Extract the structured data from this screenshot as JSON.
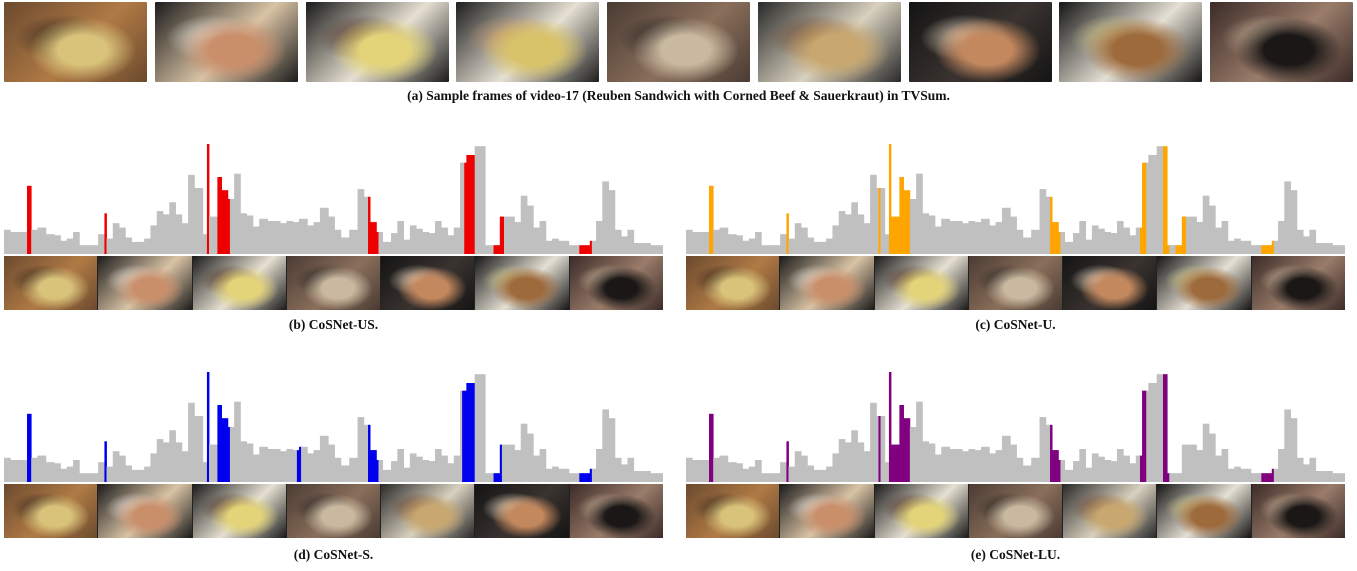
{
  "top_caption": "(a) Sample frames of video-17 (Reuben Sandwich with Corned Beef & Sauerkraut) in TVSum.",
  "top_frames": [
    {
      "name": "sandwich-halves",
      "tones": [
        "#6b4a2e",
        "#b07a45",
        "#d9c27a",
        "#3a2a1e"
      ]
    },
    {
      "name": "hand-on-bread",
      "tones": [
        "#1c1c1c",
        "#d9c3a5",
        "#c98f6b",
        "#e8e4dc"
      ]
    },
    {
      "name": "cheese-on-plate",
      "tones": [
        "#1b1b1b",
        "#e6e0d2",
        "#e3d47a",
        "#5a3a2a"
      ]
    },
    {
      "name": "slicing-sandwich",
      "tones": [
        "#1e1e1e",
        "#e7e1d4",
        "#d8c36a",
        "#c99a6a"
      ]
    },
    {
      "name": "woman-in-kitchen",
      "tones": [
        "#4a3b33",
        "#8a6f5b",
        "#c9b9a0",
        "#2a2624"
      ]
    },
    {
      "name": "stacked-sandwich",
      "tones": [
        "#2a2a2a",
        "#d9d1bf",
        "#c8a870",
        "#7a5034"
      ]
    },
    {
      "name": "pan-frying",
      "tones": [
        "#141414",
        "#3a3330",
        "#c4885e",
        "#e5d7c1"
      ]
    },
    {
      "name": "plated-reuben",
      "tones": [
        "#161616",
        "#e5e0d4",
        "#9d6a3c",
        "#d7cc8a"
      ]
    },
    {
      "name": "woman-eating",
      "tones": [
        "#3b2b28",
        "#9a7c6a",
        "#1a1716",
        "#c9b39a"
      ]
    }
  ],
  "panels": [
    {
      "id": "b",
      "caption": "(b) CoSNet-US.",
      "color": "#ee0000",
      "selected_ranges": [
        [
          11,
          12
        ],
        [
          48,
          48
        ],
        [
          97,
          97
        ],
        [
          102,
          107
        ],
        [
          174,
          178
        ],
        [
          220,
          224
        ],
        [
          234,
          238
        ],
        [
          275,
          280
        ]
      ],
      "thumbs": [
        "sandwich-halves",
        "hand-on-bread",
        "cheese-on-plate",
        "woman-in-kitchen",
        "pan-frying",
        "plated-reuben",
        "woman-eating"
      ]
    },
    {
      "id": "c",
      "caption": "(c) CoSNet-U.",
      "color": "#ffa500",
      "selected_ranges": [
        [
          11,
          12
        ],
        [
          48,
          48
        ],
        [
          92,
          92
        ],
        [
          97,
          106
        ],
        [
          174,
          178
        ],
        [
          217,
          219
        ],
        [
          228,
          230
        ],
        [
          234,
          238
        ],
        [
          275,
          280
        ]
      ],
      "thumbs": [
        "sandwich-halves",
        "hand-on-bread",
        "cheese-on-plate",
        "woman-in-kitchen",
        "pan-frying",
        "plated-reuben",
        "woman-eating"
      ]
    },
    {
      "id": "d",
      "caption": "(d) CoSNet-S.",
      "color": "#0000ee",
      "selected_ranges": [
        [
          11,
          12
        ],
        [
          48,
          48
        ],
        [
          97,
          97
        ],
        [
          102,
          107
        ],
        [
          140,
          141
        ],
        [
          174,
          178
        ],
        [
          219,
          224
        ],
        [
          234,
          237
        ],
        [
          275,
          280
        ]
      ],
      "thumbs": [
        "sandwich-halves",
        "hand-on-bread",
        "cheese-on-plate",
        "woman-in-kitchen",
        "stacked-sandwich",
        "pan-frying",
        "woman-eating"
      ]
    },
    {
      "id": "e",
      "caption": "(e) CoSNet-LU.",
      "color": "#800080",
      "selected_ranges": [
        [
          11,
          12
        ],
        [
          48,
          48
        ],
        [
          92,
          92
        ],
        [
          97,
          106
        ],
        [
          174,
          178
        ],
        [
          217,
          219
        ],
        [
          228,
          230
        ],
        [
          275,
          280
        ]
      ],
      "thumbs": [
        "sandwich-halves",
        "hand-on-bread",
        "cheese-on-plate",
        "woman-in-kitchen",
        "stacked-sandwich",
        "plated-reuben",
        "woman-eating"
      ]
    }
  ],
  "ground_truth_scores": [
    0.22,
    0.22,
    0.22,
    0.2,
    0.2,
    0.2,
    0.2,
    0.2,
    0.2,
    0.2,
    0.2,
    0.62,
    0.62,
    0.22,
    0.22,
    0.22,
    0.24,
    0.24,
    0.24,
    0.24,
    0.18,
    0.18,
    0.18,
    0.18,
    0.17,
    0.17,
    0.17,
    0.12,
    0.12,
    0.12,
    0.14,
    0.14,
    0.14,
    0.2,
    0.2,
    0.2,
    0.08,
    0.08,
    0.08,
    0.08,
    0.08,
    0.08,
    0.08,
    0.08,
    0.08,
    0.18,
    0.18,
    0.18,
    0.37,
    0.14,
    0.14,
    0.14,
    0.28,
    0.28,
    0.28,
    0.24,
    0.24,
    0.24,
    0.15,
    0.15,
    0.15,
    0.11,
    0.11,
    0.11,
    0.11,
    0.11,
    0.11,
    0.14,
    0.14,
    0.14,
    0.26,
    0.26,
    0.26,
    0.39,
    0.39,
    0.39,
    0.36,
    0.36,
    0.36,
    0.47,
    0.47,
    0.47,
    0.36,
    0.36,
    0.36,
    0.28,
    0.28,
    0.28,
    0.72,
    0.72,
    0.72,
    0.6,
    0.6,
    0.6,
    0.6,
    0.18,
    0.18,
    1.0,
    0.34,
    0.34,
    0.34,
    0.34,
    0.7,
    0.7,
    0.58,
    0.58,
    0.58,
    0.5,
    0.5,
    0.5,
    0.73,
    0.73,
    0.73,
    0.37,
    0.37,
    0.37,
    0.35,
    0.35,
    0.35,
    0.25,
    0.25,
    0.25,
    0.32,
    0.32,
    0.32,
    0.32,
    0.3,
    0.3,
    0.3,
    0.3,
    0.3,
    0.3,
    0.28,
    0.28,
    0.28,
    0.3,
    0.3,
    0.3,
    0.29,
    0.29,
    0.29,
    0.32,
    0.32,
    0.32,
    0.32,
    0.26,
    0.26,
    0.26,
    0.29,
    0.29,
    0.29,
    0.42,
    0.42,
    0.42,
    0.42,
    0.34,
    0.34,
    0.34,
    0.22,
    0.22,
    0.22,
    0.15,
    0.15,
    0.15,
    0.15,
    0.22,
    0.22,
    0.22,
    0.22,
    0.59,
    0.59,
    0.59,
    0.52,
    0.52,
    0.52,
    0.29,
    0.29,
    0.29,
    0.2,
    0.2,
    0.2,
    0.11,
    0.11,
    0.11,
    0.11,
    0.19,
    0.19,
    0.19,
    0.3,
    0.3,
    0.3,
    0.13,
    0.13,
    0.13,
    0.26,
    0.26,
    0.26,
    0.23,
    0.23,
    0.23,
    0.2,
    0.2,
    0.2,
    0.19,
    0.19,
    0.19,
    0.3,
    0.3,
    0.3,
    0.24,
    0.24,
    0.24,
    0.17,
    0.17,
    0.17,
    0.24,
    0.24,
    0.24,
    0.83,
    0.83,
    0.83,
    0.9,
    0.9,
    0.9,
    0.9,
    0.98,
    0.98,
    0.98,
    0.98,
    0.98,
    0.08,
    0.08,
    0.08,
    0.08,
    0.08,
    0.08,
    0.08,
    0.34,
    0.34,
    0.34,
    0.34,
    0.34,
    0.34,
    0.34,
    0.29,
    0.29,
    0.29,
    0.53,
    0.53,
    0.53,
    0.44,
    0.44,
    0.44,
    0.24,
    0.24,
    0.24,
    0.3,
    0.3,
    0.3,
    0.12,
    0.12,
    0.12,
    0.14,
    0.14,
    0.14,
    0.12,
    0.12,
    0.12,
    0.12,
    0.12,
    0.08,
    0.08,
    0.08,
    0.08,
    0.08,
    0.08,
    0.08,
    0.08,
    0.08,
    0.08,
    0.12,
    0.12,
    0.12,
    0.3,
    0.3,
    0.3,
    0.66,
    0.66,
    0.66,
    0.58,
    0.58,
    0.58,
    0.22,
    0.22,
    0.22,
    0.16,
    0.16,
    0.16,
    0.22,
    0.22,
    0.22,
    0.1,
    0.1,
    0.1,
    0.1,
    0.1,
    0.1,
    0.1,
    0.1,
    0.08,
    0.08,
    0.08,
    0.08,
    0.08,
    0.08
  ]
}
